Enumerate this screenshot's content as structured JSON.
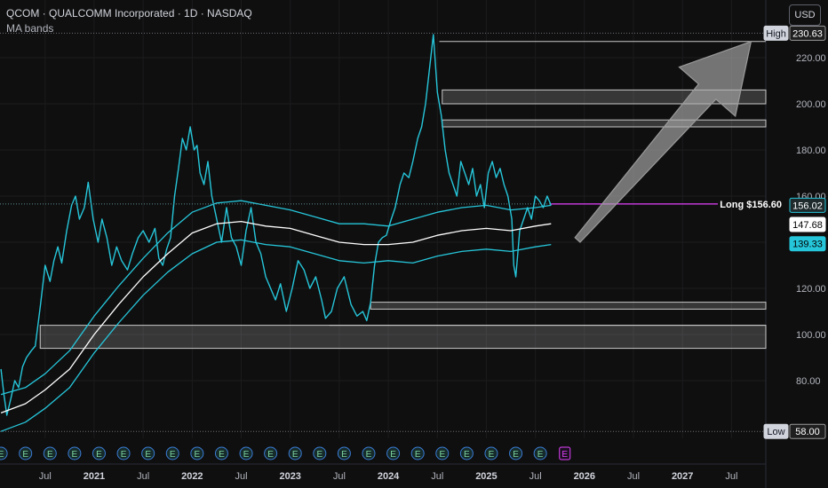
{
  "header": {
    "title": "QCOM · QUALCOMM Incorporated · 1D · NASDAQ",
    "indicator": "MA bands",
    "currency_button": "USD"
  },
  "chart_data": {
    "type": "line",
    "ylim": [
      55,
      245
    ],
    "y_ticks": [
      80,
      100,
      120,
      140,
      160,
      180,
      200,
      220
    ],
    "y_tick_labels": [
      "80.00",
      "100.00",
      "120.00",
      "140.00",
      "160.00",
      "180.00",
      "200.00",
      "220.00"
    ],
    "x_ticks": [
      {
        "label": "Jul",
        "t": 2020.5,
        "year": false
      },
      {
        "label": "2021",
        "t": 2021.0,
        "year": true
      },
      {
        "label": "Jul",
        "t": 2021.5,
        "year": false
      },
      {
        "label": "2022",
        "t": 2022.0,
        "year": true
      },
      {
        "label": "Jul",
        "t": 2022.5,
        "year": false
      },
      {
        "label": "2023",
        "t": 2023.0,
        "year": true
      },
      {
        "label": "Jul",
        "t": 2023.5,
        "year": false
      },
      {
        "label": "2024",
        "t": 2024.0,
        "year": true
      },
      {
        "label": "Jul",
        "t": 2024.5,
        "year": false
      },
      {
        "label": "2025",
        "t": 2025.0,
        "year": true
      },
      {
        "label": "Jul",
        "t": 2025.5,
        "year": false
      },
      {
        "label": "2026",
        "t": 2026.0,
        "year": true
      },
      {
        "label": "Jul",
        "t": 2026.5,
        "year": false
      },
      {
        "label": "2027",
        "t": 2027.0,
        "year": true
      },
      {
        "label": "Jul",
        "t": 2027.5,
        "year": false
      }
    ],
    "xlim": [
      2020.04,
      2027.85
    ],
    "series": [
      {
        "color": "#26c6da",
        "points": [
          [
            2020.05,
            85
          ],
          [
            2020.08,
            74
          ],
          [
            2020.11,
            65
          ],
          [
            2020.15,
            72
          ],
          [
            2020.19,
            80
          ],
          [
            2020.23,
            77
          ],
          [
            2020.27,
            86
          ],
          [
            2020.31,
            90
          ],
          [
            2020.36,
            93
          ],
          [
            2020.4,
            95
          ],
          [
            2020.45,
            112
          ],
          [
            2020.5,
            130
          ],
          [
            2020.55,
            123
          ],
          [
            2020.59,
            132
          ],
          [
            2020.63,
            138
          ],
          [
            2020.67,
            131
          ],
          [
            2020.72,
            145
          ],
          [
            2020.77,
            156
          ],
          [
            2020.81,
            160
          ],
          [
            2020.85,
            150
          ],
          [
            2020.9,
            155
          ],
          [
            2020.94,
            166
          ],
          [
            2020.99,
            150
          ],
          [
            2021.04,
            140
          ],
          [
            2021.08,
            150
          ],
          [
            2021.13,
            142
          ],
          [
            2021.18,
            130
          ],
          [
            2021.23,
            138
          ],
          [
            2021.28,
            132
          ],
          [
            2021.34,
            128
          ],
          [
            2021.39,
            135
          ],
          [
            2021.45,
            142
          ],
          [
            2021.5,
            145
          ],
          [
            2021.56,
            140
          ],
          [
            2021.62,
            146
          ],
          [
            2021.66,
            133
          ],
          [
            2021.7,
            130
          ],
          [
            2021.74,
            137
          ],
          [
            2021.78,
            142
          ],
          [
            2021.82,
            160
          ],
          [
            2021.86,
            172
          ],
          [
            2021.9,
            185
          ],
          [
            2021.94,
            180
          ],
          [
            2021.98,
            190
          ],
          [
            2022.02,
            180
          ],
          [
            2022.05,
            182
          ],
          [
            2022.08,
            170
          ],
          [
            2022.12,
            165
          ],
          [
            2022.16,
            175
          ],
          [
            2022.2,
            160
          ],
          [
            2022.25,
            150
          ],
          [
            2022.3,
            140
          ],
          [
            2022.35,
            155
          ],
          [
            2022.4,
            142
          ],
          [
            2022.45,
            138
          ],
          [
            2022.5,
            130
          ],
          [
            2022.55,
            145
          ],
          [
            2022.6,
            155
          ],
          [
            2022.65,
            140
          ],
          [
            2022.7,
            135
          ],
          [
            2022.75,
            125
          ],
          [
            2022.8,
            120
          ],
          [
            2022.85,
            115
          ],
          [
            2022.9,
            122
          ],
          [
            2022.96,
            110
          ],
          [
            2023.02,
            120
          ],
          [
            2023.08,
            132
          ],
          [
            2023.14,
            128
          ],
          [
            2023.2,
            120
          ],
          [
            2023.26,
            125
          ],
          [
            2023.32,
            115
          ],
          [
            2023.36,
            107
          ],
          [
            2023.42,
            110
          ],
          [
            2023.48,
            120
          ],
          [
            2023.55,
            125
          ],
          [
            2023.62,
            113
          ],
          [
            2023.68,
            108
          ],
          [
            2023.74,
            110
          ],
          [
            2023.78,
            106
          ],
          [
            2023.82,
            114
          ],
          [
            2023.86,
            130
          ],
          [
            2023.9,
            140
          ],
          [
            2023.94,
            142
          ],
          [
            2023.98,
            143
          ],
          [
            2024.03,
            150
          ],
          [
            2024.07,
            155
          ],
          [
            2024.12,
            165
          ],
          [
            2024.16,
            170
          ],
          [
            2024.21,
            168
          ],
          [
            2024.25,
            175
          ],
          [
            2024.3,
            185
          ],
          [
            2024.34,
            190
          ],
          [
            2024.38,
            200
          ],
          [
            2024.42,
            215
          ],
          [
            2024.46,
            230
          ],
          [
            2024.5,
            205
          ],
          [
            2024.54,
            195
          ],
          [
            2024.58,
            180
          ],
          [
            2024.62,
            170
          ],
          [
            2024.66,
            165
          ],
          [
            2024.7,
            160
          ],
          [
            2024.74,
            175
          ],
          [
            2024.78,
            170
          ],
          [
            2024.82,
            165
          ],
          [
            2024.86,
            172
          ],
          [
            2024.9,
            160
          ],
          [
            2024.94,
            165
          ],
          [
            2024.98,
            155
          ],
          [
            2025.02,
            170
          ],
          [
            2025.06,
            175
          ],
          [
            2025.1,
            168
          ],
          [
            2025.14,
            172
          ],
          [
            2025.18,
            165
          ],
          [
            2025.22,
            160
          ],
          [
            2025.26,
            150
          ],
          [
            2025.28,
            130
          ],
          [
            2025.3,
            125
          ],
          [
            2025.34,
            145
          ],
          [
            2025.38,
            150
          ],
          [
            2025.42,
            155
          ],
          [
            2025.46,
            150
          ],
          [
            2025.5,
            160
          ],
          [
            2025.54,
            158
          ],
          [
            2025.58,
            155
          ],
          [
            2025.62,
            160
          ],
          [
            2025.66,
            156
          ]
        ]
      },
      {
        "color": "#ffffff",
        "points": [
          [
            2020.05,
            66
          ],
          [
            2020.3,
            70
          ],
          [
            2020.5,
            76
          ],
          [
            2020.75,
            85
          ],
          [
            2021.0,
            100
          ],
          [
            2021.25,
            113
          ],
          [
            2021.5,
            125
          ],
          [
            2021.75,
            135
          ],
          [
            2022.0,
            144
          ],
          [
            2022.25,
            148
          ],
          [
            2022.5,
            149
          ],
          [
            2022.75,
            147
          ],
          [
            2023.0,
            146
          ],
          [
            2023.25,
            143
          ],
          [
            2023.5,
            140
          ],
          [
            2023.75,
            139
          ],
          [
            2024.0,
            139
          ],
          [
            2024.25,
            140
          ],
          [
            2024.5,
            143
          ],
          [
            2024.75,
            145
          ],
          [
            2025.0,
            146
          ],
          [
            2025.25,
            145
          ],
          [
            2025.5,
            147
          ],
          [
            2025.66,
            148
          ]
        ]
      },
      {
        "color": "#26c6da",
        "points": [
          [
            2020.05,
            74
          ],
          [
            2020.3,
            77
          ],
          [
            2020.5,
            83
          ],
          [
            2020.75,
            93
          ],
          [
            2021.0,
            108
          ],
          [
            2021.25,
            121
          ],
          [
            2021.5,
            133
          ],
          [
            2021.75,
            144
          ],
          [
            2022.0,
            153
          ],
          [
            2022.25,
            157
          ],
          [
            2022.5,
            158
          ],
          [
            2022.75,
            156
          ],
          [
            2023.0,
            154
          ],
          [
            2023.25,
            151
          ],
          [
            2023.5,
            148
          ],
          [
            2023.75,
            148
          ],
          [
            2024.0,
            147
          ],
          [
            2024.25,
            150
          ],
          [
            2024.5,
            153
          ],
          [
            2024.75,
            155
          ],
          [
            2025.0,
            156
          ],
          [
            2025.25,
            154
          ],
          [
            2025.5,
            155
          ],
          [
            2025.66,
            156
          ]
        ]
      },
      {
        "color": "#26c6da",
        "points": [
          [
            2020.05,
            58
          ],
          [
            2020.3,
            62
          ],
          [
            2020.5,
            68
          ],
          [
            2020.75,
            77
          ],
          [
            2021.0,
            92
          ],
          [
            2021.25,
            105
          ],
          [
            2021.5,
            117
          ],
          [
            2021.75,
            127
          ],
          [
            2022.0,
            135
          ],
          [
            2022.25,
            140
          ],
          [
            2022.5,
            141
          ],
          [
            2022.75,
            139
          ],
          [
            2023.0,
            138
          ],
          [
            2023.25,
            135
          ],
          [
            2023.5,
            132
          ],
          [
            2023.75,
            131
          ],
          [
            2024.0,
            132
          ],
          [
            2024.25,
            131
          ],
          [
            2024.5,
            134
          ],
          [
            2024.75,
            136
          ],
          [
            2025.0,
            137
          ],
          [
            2025.25,
            136
          ],
          [
            2025.5,
            138
          ],
          [
            2025.66,
            139
          ]
        ]
      }
    ],
    "zones": [
      {
        "t1": 2020.45,
        "t2": 2027.85,
        "y1": 94,
        "y2": 104
      },
      {
        "t1": 2024.55,
        "t2": 2027.85,
        "y1": 200,
        "y2": 206
      },
      {
        "t1": 2024.55,
        "t2": 2027.85,
        "y1": 190,
        "y2": 193
      },
      {
        "t1": 2023.82,
        "t2": 2027.85,
        "y1": 111,
        "y2": 114
      }
    ],
    "levels": [
      {
        "t1": 2024.52,
        "y": 227
      },
      {
        "t1": 2023.4,
        "y": 104
      }
    ],
    "long_line": {
      "t1": 2025.66,
      "y": 156.6,
      "label": "Long $156.60",
      "color": "#e040fb"
    },
    "high_line": {
      "y": 230.63
    },
    "low_line": {
      "y": 58
    },
    "arrow": {
      "t1": 2025.93,
      "y1": 141,
      "t2": 2027.7,
      "y2": 227
    },
    "earnings": {
      "label": "E",
      "t": [
        2020.05,
        2020.3,
        2020.55,
        2020.8,
        2021.05,
        2021.3,
        2021.55,
        2021.8,
        2022.05,
        2022.3,
        2022.55,
        2022.8,
        2023.05,
        2023.3,
        2023.55,
        2023.8,
        2024.05,
        2024.3,
        2024.55,
        2024.8,
        2025.05,
        2025.3,
        2025.55
      ],
      "next_t": 2025.8
    },
    "price_tags": [
      {
        "label": "High",
        "value": "230.63",
        "y": 230.63,
        "style": "high"
      },
      {
        "value": "156.02",
        "y": 156.02,
        "style": "last"
      },
      {
        "value": "147.68",
        "y": 147.68,
        "style": "mid"
      },
      {
        "value": "139.33",
        "y": 139.33,
        "style": "lower"
      },
      {
        "label": "Low",
        "value": "58.00",
        "y": 58,
        "style": "low"
      }
    ]
  }
}
